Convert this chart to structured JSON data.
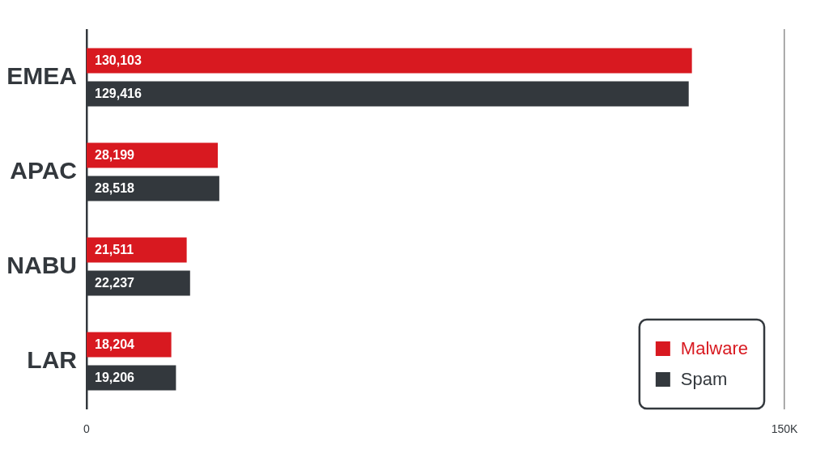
{
  "chart_data": {
    "type": "bar",
    "orientation": "horizontal",
    "categories": [
      "EMEA",
      "APAC",
      "NABU",
      "LAR"
    ],
    "series": [
      {
        "name": "Malware",
        "color": "#d81920",
        "values": [
          130103,
          28199,
          21511,
          18204
        ],
        "value_labels": [
          "130,103",
          "28,199",
          "21,511",
          "18,204"
        ]
      },
      {
        "name": "Spam",
        "color": "#33383d",
        "values": [
          129416,
          28518,
          22237,
          19206
        ],
        "value_labels": [
          "129,416",
          "28,518",
          "22,237",
          "19,206"
        ]
      }
    ],
    "xlim": [
      0,
      150000
    ],
    "xticks": [
      0,
      {
        "value": 150000,
        "label": "150K"
      }
    ],
    "legend": "bottom right"
  }
}
